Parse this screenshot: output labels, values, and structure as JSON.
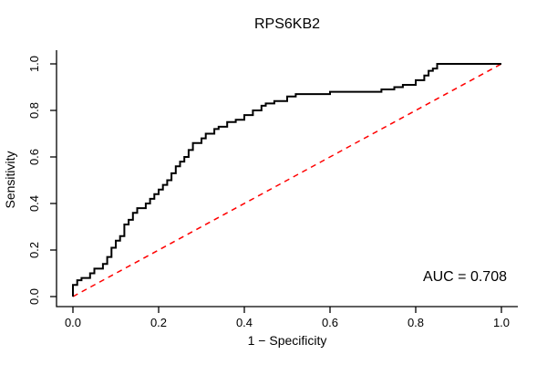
{
  "chart_data": {
    "type": "line",
    "subtype": "roc-curve",
    "title": "RPS6KB2",
    "xlabel": "1 − Specificity",
    "ylabel": "Sensitivity",
    "xlim": [
      0,
      1
    ],
    "ylim": [
      0,
      1
    ],
    "x_ticks": [
      "0.0",
      "0.2",
      "0.4",
      "0.6",
      "0.8",
      "1.0"
    ],
    "y_ticks": [
      "0.0",
      "0.2",
      "0.4",
      "0.6",
      "0.8",
      "1.0"
    ],
    "x_tick_values": [
      0,
      0.2,
      0.4,
      0.6,
      0.8,
      1.0
    ],
    "y_tick_values": [
      0,
      0.2,
      0.4,
      0.6,
      0.8,
      1.0
    ],
    "grid": false,
    "legend": "none",
    "annotation": "AUC = 0.708",
    "auc": 0.708,
    "curve_color": "#000000",
    "reference_line_color": "#ff0000",
    "reference_line": {
      "style": "dashed",
      "from": [
        0,
        0
      ],
      "to": [
        1,
        1
      ]
    },
    "series": [
      {
        "name": "ROC curve",
        "step": "vh",
        "points": [
          [
            0.0,
            0.0
          ],
          [
            0.0,
            0.03
          ],
          [
            0.01,
            0.05
          ],
          [
            0.02,
            0.07
          ],
          [
            0.04,
            0.08
          ],
          [
            0.05,
            0.1
          ],
          [
            0.07,
            0.12
          ],
          [
            0.08,
            0.14
          ],
          [
            0.09,
            0.17
          ],
          [
            0.1,
            0.21
          ],
          [
            0.11,
            0.24
          ],
          [
            0.12,
            0.26
          ],
          [
            0.12,
            0.29
          ],
          [
            0.13,
            0.31
          ],
          [
            0.14,
            0.33
          ],
          [
            0.15,
            0.36
          ],
          [
            0.17,
            0.38
          ],
          [
            0.18,
            0.4
          ],
          [
            0.19,
            0.42
          ],
          [
            0.2,
            0.44
          ],
          [
            0.21,
            0.46
          ],
          [
            0.22,
            0.48
          ],
          [
            0.23,
            0.5
          ],
          [
            0.24,
            0.53
          ],
          [
            0.25,
            0.56
          ],
          [
            0.26,
            0.58
          ],
          [
            0.27,
            0.6
          ],
          [
            0.28,
            0.63
          ],
          [
            0.3,
            0.66
          ],
          [
            0.31,
            0.68
          ],
          [
            0.33,
            0.7
          ],
          [
            0.34,
            0.72
          ],
          [
            0.36,
            0.73
          ],
          [
            0.38,
            0.75
          ],
          [
            0.4,
            0.76
          ],
          [
            0.42,
            0.78
          ],
          [
            0.44,
            0.8
          ],
          [
            0.45,
            0.82
          ],
          [
            0.47,
            0.83
          ],
          [
            0.5,
            0.84
          ],
          [
            0.52,
            0.86
          ],
          [
            0.55,
            0.87
          ],
          [
            0.6,
            0.87
          ],
          [
            0.63,
            0.88
          ],
          [
            0.72,
            0.88
          ],
          [
            0.75,
            0.89
          ],
          [
            0.77,
            0.9
          ],
          [
            0.8,
            0.91
          ],
          [
            0.82,
            0.93
          ],
          [
            0.83,
            0.95
          ],
          [
            0.84,
            0.97
          ],
          [
            0.85,
            0.98
          ],
          [
            0.86,
            1.0
          ],
          [
            1.0,
            1.0
          ]
        ]
      }
    ]
  }
}
